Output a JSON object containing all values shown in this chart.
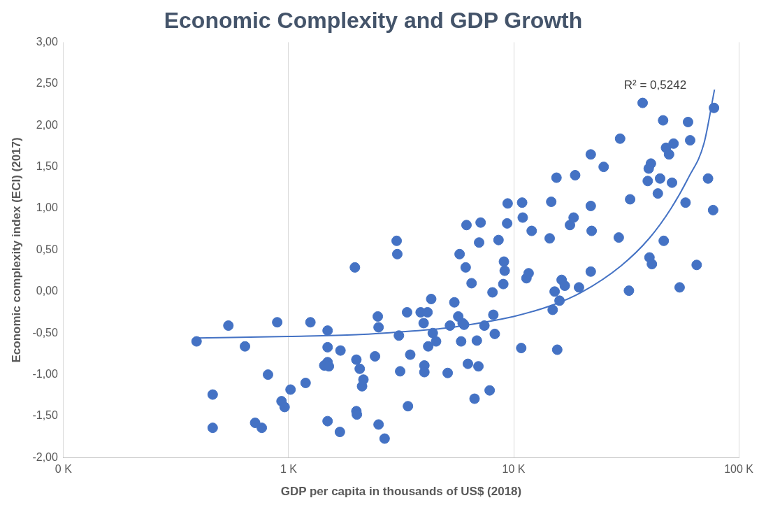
{
  "chart_data": {
    "type": "scatter",
    "title": "Economic Complexity and GDP Growth",
    "xlabel": "GDP per capita in thousands of US$ (2018)",
    "ylabel": "Economic complexity index (ECI) (2017)",
    "log": "x",
    "grid": "x",
    "legend": false,
    "marker": "circle",
    "xlim": [
      100,
      100000
    ],
    "xticks": [
      {
        "value": 100,
        "label": "0 K"
      },
      {
        "value": 1000,
        "label": "1 K"
      },
      {
        "value": 10000,
        "label": "10 K"
      },
      {
        "value": 100000,
        "label": "100 K"
      }
    ],
    "ylim": [
      -2,
      3
    ],
    "yticks": [
      {
        "value": -2,
        "label": "-2,00"
      },
      {
        "value": -1.5,
        "label": "-1,50"
      },
      {
        "value": -1,
        "label": "-1,00"
      },
      {
        "value": -0.5,
        "label": "-0,50"
      },
      {
        "value": 0,
        "label": "0,00"
      },
      {
        "value": 0.5,
        "label": "0,50"
      },
      {
        "value": 1,
        "label": "1,00"
      },
      {
        "value": 1.5,
        "label": "1,50"
      },
      {
        "value": 2,
        "label": "2,00"
      },
      {
        "value": 2.5,
        "label": "2,50"
      },
      {
        "value": 3,
        "label": "3,00"
      }
    ],
    "annotations": [
      "R² = 0,5242"
    ],
    "series": [
      {
        "color": "#4472c4",
        "x": [
          390,
          460,
          460,
          540,
          640,
          710,
          760,
          810,
          890,
          930,
          960,
          1020,
          1190,
          1250,
          1440,
          1490,
          1490,
          1490,
          1510,
          1490,
          1690,
          1700,
          1970,
          2000,
          2000,
          2010,
          2070,
          2120,
          2150,
          2420,
          2490,
          2510,
          2510,
          2670,
          3020,
          3040,
          3090,
          3130,
          3360,
          3390,
          3470,
          3860,
          3980,
          4010,
          4010,
          4140,
          4170,
          4300,
          4370,
          4520,
          5090,
          5210,
          5450,
          5670,
          5750,
          5840,
          5930,
          6020,
          6120,
          6170,
          6260,
          6500,
          6700,
          6860,
          6970,
          7020,
          7130,
          7410,
          7820,
          8050,
          8120,
          8240,
          8560,
          8990,
          9050,
          9120,
          9350,
          9400,
          10800,
          10900,
          10970,
          11390,
          11650,
          12020,
          14450,
          14680,
          14900,
          15200,
          15490,
          15610,
          15980,
          16330,
          16870,
          17780,
          18460,
          18750,
          19500,
          22000,
          22000,
          22200,
          22000,
          25100,
          29300,
          29700,
          32900,
          32500,
          37400,
          39400,
          39800,
          40100,
          40700,
          41100,
          43700,
          44700,
          46100,
          46400,
          47500,
          49000,
          50500,
          51300,
          54600,
          58000,
          59500,
          60800,
          65000,
          73000,
          76900,
          77600
        ],
        "values": [
          -0.6,
          -1.24,
          -1.64,
          -0.41,
          -0.66,
          -1.58,
          -1.64,
          -1.0,
          -0.37,
          -1.32,
          -1.39,
          -1.18,
          -1.1,
          -0.37,
          -0.89,
          -0.47,
          -0.67,
          -0.85,
          -0.9,
          -1.56,
          -1.69,
          -0.71,
          0.29,
          -0.82,
          -1.44,
          -1.48,
          -0.93,
          -1.14,
          -1.06,
          -0.78,
          -0.3,
          -0.43,
          -1.6,
          -1.77,
          0.61,
          0.45,
          -0.53,
          -0.96,
          -0.25,
          -1.38,
          -0.76,
          -0.25,
          -0.38,
          -0.89,
          -0.97,
          -0.25,
          -0.66,
          -0.09,
          -0.5,
          -0.6,
          -0.98,
          -0.41,
          -0.13,
          -0.3,
          0.45,
          -0.6,
          -0.38,
          -0.4,
          0.29,
          0.8,
          -0.87,
          0.1,
          -1.29,
          -0.59,
          -0.9,
          0.59,
          0.83,
          -0.41,
          -1.19,
          -0.01,
          -0.28,
          -0.51,
          0.62,
          0.09,
          0.36,
          0.25,
          0.82,
          1.06,
          -0.68,
          1.07,
          0.89,
          0.16,
          0.22,
          0.73,
          0.64,
          1.08,
          -0.22,
          0.0,
          1.37,
          -0.7,
          -0.11,
          0.14,
          0.07,
          0.8,
          0.89,
          1.4,
          0.05,
          1.65,
          1.03,
          0.73,
          0.24,
          1.5,
          0.65,
          1.84,
          1.11,
          0.01,
          2.27,
          1.33,
          1.48,
          0.41,
          1.54,
          0.33,
          1.18,
          1.36,
          2.06,
          0.61,
          1.73,
          1.65,
          1.31,
          1.78,
          0.05,
          1.07,
          2.04,
          1.82,
          0.32,
          1.36,
          0.98,
          2.21
        ]
      },
      {
        "type": "line",
        "color": "#4472c4",
        "marker": "none",
        "x": [
          390,
          1000,
          2000,
          3000,
          5000,
          7000,
          10000,
          15000,
          20000,
          30000,
          40000,
          50000,
          60000,
          70000,
          78000
        ],
        "values": [
          -0.56,
          -0.54,
          -0.52,
          -0.49,
          -0.44,
          -0.38,
          -0.3,
          -0.16,
          -0.01,
          0.31,
          0.64,
          1.0,
          1.38,
          1.78,
          2.43
        ]
      }
    ]
  }
}
